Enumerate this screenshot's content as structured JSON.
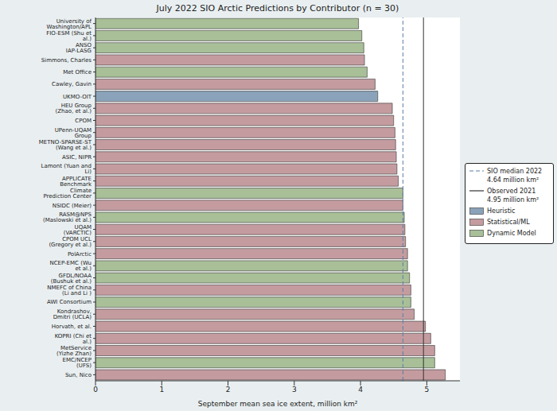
{
  "chart_data": {
    "type": "bar",
    "title": "July 2022 SIO Arctic Predictions by Contributor (n = 30)",
    "orientation": "horizontal",
    "stacked": true,
    "grid": false,
    "legend": "right",
    "x_label": "September mean sea ice extent, million km²",
    "categories": [
      "University of Washington/APL",
      "FIO-ESM (Shu et al.)",
      "ANSO IAP-LASG",
      "Simmons, Charles",
      "Met Office",
      "Cawley, Gavin",
      "UKMO-OIT",
      "HEU Group (Zhao, et al.)",
      "CPOM",
      "UPenn-UQAM Group",
      "METNO-SPARSE-ST (Wang et al.)",
      "ASIC, NIPR",
      "Lamont (Yuan and Li)",
      "APPLICATE Benchmark",
      "Climate Prediction Center",
      "NSIDC (Meier)",
      "RASM@NPS (Maslowski et al.)",
      "UQAM (VARCTIC)",
      "CPOM UCL (Gregory et al.)",
      "PolArctic",
      "NCEP-EMC (Wu et al.)",
      "GFDL/NOAA (Bushuk et al.)",
      "NMEFC of China (Li and Li )",
      "AWI Consortium",
      "Kondrashov, Dmitri (UCLA)",
      "Horvath, et al.",
      "KOPRI (Chi et al.)",
      "MetService (Yizhe Zhan)",
      "EMC/NCEP (UFS)",
      "Sun, Nico"
    ],
    "series": [
      {
        "name": "Heuristic",
        "color": "#8ba3ba",
        "values": [
          null,
          null,
          null,
          null,
          null,
          null,
          4.26,
          null,
          null,
          null,
          null,
          null,
          null,
          null,
          null,
          null,
          null,
          null,
          null,
          null,
          null,
          null,
          null,
          null,
          null,
          null,
          null,
          null,
          null,
          null
        ]
      },
      {
        "name": "Statistical/ML",
        "color": "#c49ca0",
        "values": [
          null,
          null,
          null,
          4.06,
          null,
          4.22,
          null,
          4.48,
          4.5,
          4.52,
          4.53,
          4.54,
          4.55,
          4.57,
          null,
          4.64,
          null,
          4.67,
          4.68,
          4.71,
          null,
          null,
          4.76,
          null,
          4.81,
          4.98,
          5.06,
          5.12,
          null,
          5.28
        ]
      },
      {
        "name": "Dynamic Model",
        "color": "#a8bf98",
        "values": [
          3.97,
          4.02,
          4.05,
          null,
          4.1,
          null,
          null,
          null,
          null,
          null,
          null,
          null,
          null,
          null,
          4.64,
          null,
          4.66,
          null,
          null,
          null,
          4.71,
          4.74,
          null,
          4.76,
          null,
          null,
          null,
          null,
          5.12,
          null
        ]
      }
    ],
    "reference_lines": [
      {
        "name": "SIO median 2022",
        "value": 4.64,
        "label": "4.64 million km²",
        "color": "#5b7fa6",
        "line_style": "dashed"
      },
      {
        "name": "Observed 2021",
        "value": 4.95,
        "label": "4.95 million km²",
        "color": "#333333",
        "line_style": "solid"
      }
    ],
    "xlim": [
      0,
      5.5
    ],
    "xticks": [
      0,
      1,
      2,
      3,
      4,
      5
    ]
  }
}
